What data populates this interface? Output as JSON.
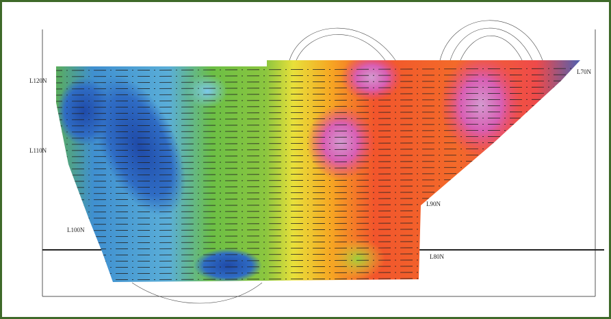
{
  "map": {
    "line_labels": [
      "L120N",
      "L110N",
      "L100N",
      "L90N",
      "L80N",
      "L70N"
    ]
  }
}
